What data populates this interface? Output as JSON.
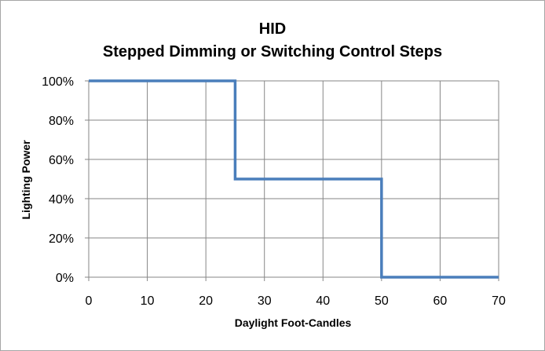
{
  "chart_data": {
    "type": "line",
    "title": "HID",
    "subtitle": "Stepped Dimming or Switching Control Steps",
    "xlabel": "Daylight Foot-Candles",
    "ylabel": "Lighting Power",
    "xlim": [
      0,
      70
    ],
    "ylim": [
      0,
      1
    ],
    "x_ticks": [
      "0",
      "10",
      "20",
      "30",
      "40",
      "50",
      "60",
      "70"
    ],
    "y_ticks": [
      "0%",
      "20%",
      "40%",
      "60%",
      "80%",
      "100%"
    ],
    "grid": true,
    "legend": "none",
    "series": [
      {
        "color": "#4a7ebb",
        "x": [
          0,
          25,
          25,
          50,
          50,
          70
        ],
        "y": [
          1.0,
          1.0,
          0.5,
          0.5,
          0.0,
          0.0
        ]
      }
    ]
  }
}
